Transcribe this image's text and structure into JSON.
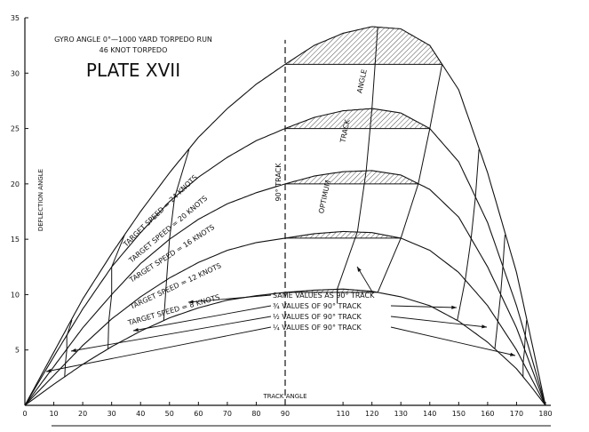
{
  "chart_data": {
    "type": "line",
    "title": "PLATE XVII",
    "subtitle": [
      "GYRO ANGLE 0°—1000 YARD TORPEDO RUN",
      "46 KNOT TORPEDO"
    ],
    "xlabel": "TRACK ANGLE",
    "ylabel": "DEFLECTION ANGLE",
    "xlim": [
      0,
      180
    ],
    "ylim": [
      0,
      35
    ],
    "x_ticks": [
      0,
      10,
      20,
      30,
      40,
      50,
      60,
      70,
      80,
      90,
      110,
      120,
      130,
      140,
      150,
      160,
      170,
      180
    ],
    "y_ticks": [
      5,
      10,
      15,
      20,
      25,
      30,
      35
    ],
    "series": [
      {
        "name": "TARGET SPEED = 24 KNOTS",
        "peak": [
          122,
          34.2
        ],
        "x": [
          0,
          10,
          20,
          30,
          40,
          50,
          60,
          70,
          80,
          90,
          100,
          110,
          120,
          130,
          140,
          150,
          160,
          170,
          175,
          180
        ],
        "y": [
          0,
          4.8,
          9.6,
          13.7,
          17.5,
          21,
          24.2,
          26.8,
          29,
          30.8,
          32.5,
          33.6,
          34.2,
          34,
          32.5,
          28.5,
          21,
          12,
          6,
          0
        ]
      },
      {
        "name": "TARGET SPEED = 20 KNOTS",
        "peak": [
          120,
          26.8
        ],
        "x": [
          0,
          10,
          20,
          30,
          40,
          50,
          60,
          70,
          80,
          90,
          100,
          110,
          120,
          130,
          140,
          150,
          160,
          170,
          175,
          180
        ],
        "y": [
          0,
          4.4,
          8.7,
          12.5,
          15.6,
          18.4,
          20.6,
          22.4,
          23.9,
          25,
          26,
          26.6,
          26.8,
          26.4,
          25,
          22,
          16.5,
          9,
          4.5,
          0
        ]
      },
      {
        "name": "TARGET SPEED = 16 KNOTS",
        "peak": [
          118,
          21.2
        ],
        "x": [
          0,
          10,
          20,
          30,
          40,
          50,
          60,
          70,
          80,
          90,
          100,
          110,
          120,
          130,
          140,
          150,
          160,
          170,
          175,
          180
        ],
        "y": [
          0,
          3.5,
          7,
          10,
          12.8,
          15,
          16.8,
          18.2,
          19.2,
          20,
          20.7,
          21.1,
          21.2,
          20.8,
          19.5,
          17,
          12.5,
          7,
          3.5,
          0
        ]
      },
      {
        "name": "TARGET SPEED = 12 KNOTS",
        "peak": [
          115,
          15.7
        ],
        "x": [
          0,
          10,
          20,
          30,
          40,
          50,
          60,
          70,
          80,
          90,
          100,
          110,
          120,
          130,
          140,
          150,
          160,
          170,
          175,
          180
        ],
        "y": [
          0,
          2.7,
          5.4,
          7.8,
          9.8,
          11.5,
          12.9,
          14,
          14.7,
          15.1,
          15.5,
          15.7,
          15.6,
          15.1,
          14,
          12,
          9,
          5,
          2.5,
          0
        ]
      },
      {
        "name": "TARGET SPEED = 8 KNOTS",
        "peak": [
          108,
          10.5
        ],
        "x": [
          0,
          10,
          20,
          30,
          40,
          50,
          60,
          70,
          80,
          90,
          100,
          110,
          120,
          130,
          140,
          150,
          160,
          170,
          175,
          180
        ],
        "y": [
          0,
          1.9,
          3.7,
          5.3,
          6.7,
          7.9,
          8.8,
          9.5,
          9.9,
          10.2,
          10.4,
          10.5,
          10.3,
          9.8,
          9,
          7.6,
          5.7,
          3.3,
          1.7,
          0
        ]
      }
    ],
    "annotations": [
      {
        "text": "90° TRACK",
        "x": 90
      },
      {
        "text": "OPTIMUM",
        "x": 110
      },
      {
        "text": "TRACK",
        "x": 116
      },
      {
        "text": "ANGLE",
        "x": 122
      },
      {
        "text": "SAME VALUES AS 90° TRACK"
      },
      {
        "text": "¾ VALUES OF 90° TRACK"
      },
      {
        "text": "½ VALUES OF 90° TRACK"
      },
      {
        "text": "¼ VALUES OF 90° TRACK"
      }
    ],
    "grid": false,
    "legend": "inline"
  }
}
